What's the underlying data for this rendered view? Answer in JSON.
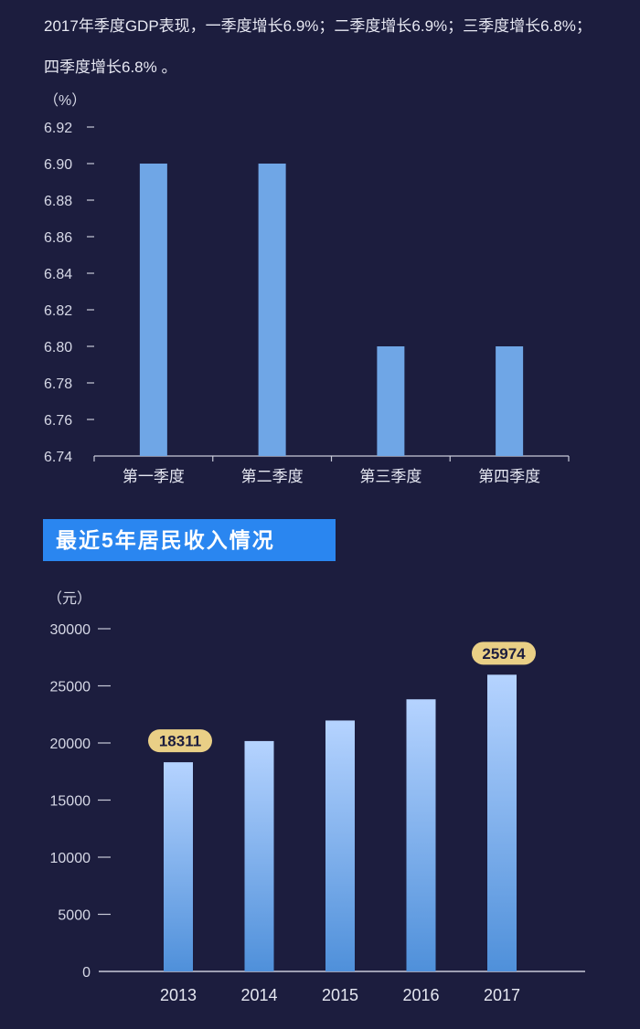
{
  "intro_text": "2017年季度GDP表现，一季度增长6.9%；二季度增长6.9%；三季度增长6.8%；四季度增长6.8% 。",
  "section_title": "最近5年居民收入情况",
  "colors": {
    "background": "#1c1d3e",
    "bar_quarter": "#6fa6e6",
    "bar_grad_top": "#b5d3ff",
    "bar_grad_bottom": "#4f90da",
    "badge": "#e9cf86",
    "section_bg": "#2a86f0"
  },
  "chart_data": [
    {
      "type": "bar",
      "ylabel": "（%）",
      "categories": [
        "第一季度",
        "第二季度",
        "第三季度",
        "第四季度"
      ],
      "values": [
        6.9,
        6.9,
        6.8,
        6.8
      ],
      "ylim": [
        6.74,
        6.92
      ],
      "yticks": [
        "6.74",
        "6.76",
        "6.78",
        "6.80",
        "6.82",
        "6.84",
        "6.86",
        "6.88",
        "6.90",
        "6.92"
      ],
      "grid": false
    },
    {
      "type": "bar",
      "ylabel": "（元）",
      "categories": [
        "2013",
        "2014",
        "2015",
        "2016",
        "2017"
      ],
      "values": [
        18311,
        20167,
        21966,
        23821,
        25974
      ],
      "ylim": [
        0,
        30000
      ],
      "yticks": [
        "0",
        "5000",
        "10000",
        "15000",
        "20000",
        "25000",
        "30000"
      ],
      "annotations": [
        {
          "category": "2013",
          "label": "18311"
        },
        {
          "category": "2017",
          "label": "25974"
        }
      ],
      "grid": false
    }
  ]
}
